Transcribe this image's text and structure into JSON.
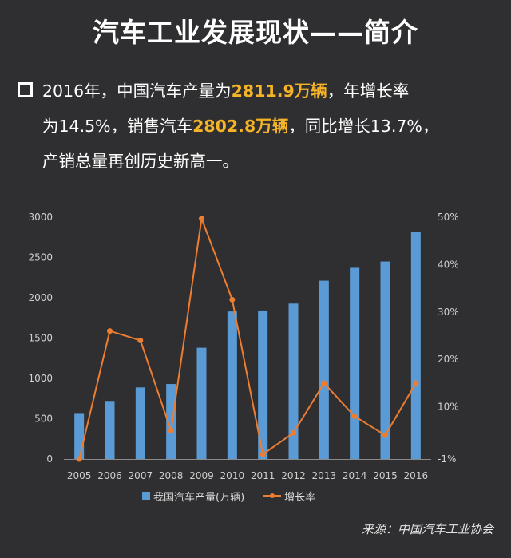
{
  "title": "汽车工业发展现状——简介",
  "paragraph": {
    "line1_a": "2016年，中国汽车产量为",
    "line1_hl": "2811.9万辆",
    "line1_b": "，年增长率",
    "line2_a": "为14.5%，销售汽车",
    "line2_hl": "2802.8万辆",
    "line2_b": "，同比增长13.7%，",
    "line3": "产销总量再创历史新高一。"
  },
  "source": "来源：中国汽车工业协会",
  "colors": {
    "bar": "#5b9bd5",
    "line": "#ed7d31",
    "highlight": "#f5b427"
  },
  "chart_data": {
    "type": "bar",
    "categories": [
      "2005",
      "2006",
      "2007",
      "2008",
      "2009",
      "2010",
      "2011",
      "2012",
      "2013",
      "2014",
      "2015",
      "2016"
    ],
    "series": [
      {
        "name": "我国汽车产量(万辆)",
        "type": "bar",
        "axis": "left",
        "values": [
          570,
          720,
          888,
          930,
          1380,
          1830,
          1842,
          1928,
          2212,
          2372,
          2450,
          2812
        ]
      },
      {
        "name": "增长率",
        "type": "line",
        "axis": "right",
        "values": [
          -1,
          26,
          24,
          5,
          49.7,
          32.6,
          0,
          4.5,
          15,
          8,
          4,
          15
        ]
      }
    ],
    "y_left": {
      "min": 0,
      "max": 3000,
      "ticks": [
        "0",
        "500",
        "1000",
        "1500",
        "2000",
        "2500",
        "3000"
      ]
    },
    "y_right": {
      "min": -1,
      "max": 50,
      "ticks": [
        "-1%",
        "10%",
        "20%",
        "30%",
        "40%",
        "50%"
      ],
      "tick_values": [
        -1,
        10,
        20,
        30,
        40,
        50
      ]
    },
    "legend_position": "bottom",
    "grid": false
  }
}
